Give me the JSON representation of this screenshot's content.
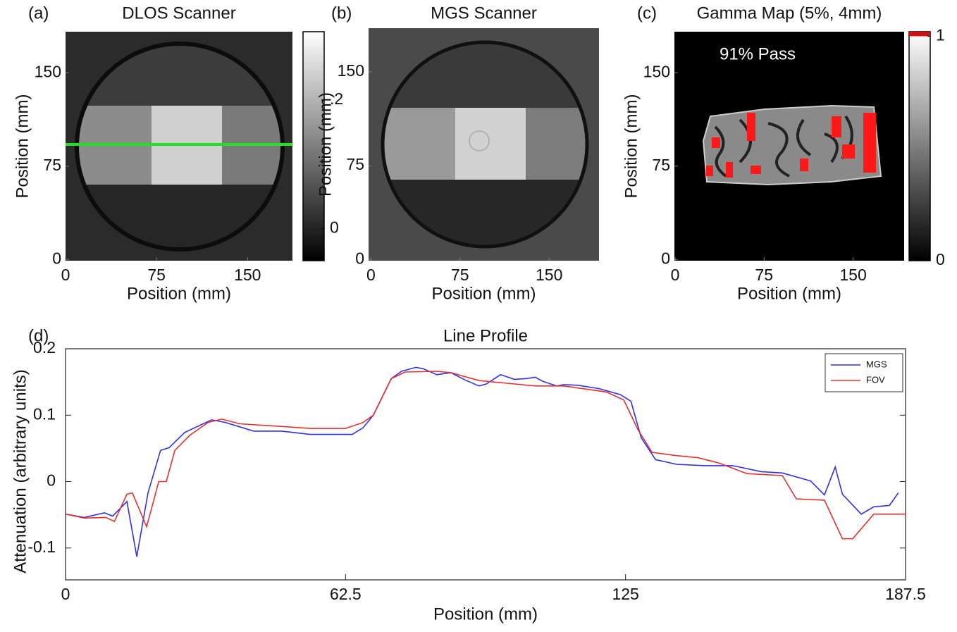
{
  "chart_data": [
    {
      "type": "image",
      "panel": "(a)",
      "title": "DLOS Scanner",
      "xlabel": "Position (mm)",
      "ylabel": "Position (mm)",
      "xlim": [
        0,
        187
      ],
      "ylim": [
        -1,
        183
      ],
      "xticks": [
        0,
        75,
        150
      ],
      "yticks": [
        0,
        75,
        150
      ],
      "colorbar": {
        "clim": [
          -0.05,
          0.306
        ],
        "ticks": [
          {
            "value": 0.2,
            "label": ".2"
          },
          0
        ]
      }
    },
    {
      "type": "image",
      "panel": "(b)",
      "title": "MGS Scanner",
      "xlabel": "Position (mm)",
      "ylabel": "Position (mm)",
      "xlim": [
        -2,
        192
      ],
      "ylim": [
        -1,
        185
      ],
      "xticks": [
        0,
        75,
        150
      ],
      "yticks": [
        0,
        75,
        150
      ]
    },
    {
      "type": "image",
      "panel": "(c)",
      "title": "Gamma Map (5%, 4mm)",
      "xlabel": "Position (mm)",
      "ylabel": "Position (mm)",
      "annotation": "91% Pass",
      "xlim": [
        -0.6,
        193
      ],
      "ylim": [
        -1,
        183
      ],
      "xticks": [
        0,
        75,
        150
      ],
      "yticks": [
        0,
        75,
        150
      ],
      "colorbar": {
        "clim": [
          0,
          1.02
        ],
        "ticks": [
          1,
          0
        ]
      }
    },
    {
      "type": "line",
      "panel": "(d)",
      "title": "Line Profile",
      "xlabel": "Position (mm)",
      "ylabel": "Attenuation (arbitrary units)",
      "xlim": [
        0,
        187.5
      ],
      "ylim": [
        -0.148,
        0.2
      ],
      "xticks": [
        0,
        62.5,
        125,
        187.5
      ],
      "yticks": [
        0.2,
        0.1,
        0,
        -0.1
      ],
      "legend": "upper right",
      "series": [
        {
          "name": "MGS",
          "color": "#2f2fe8",
          "x": [
            0,
            4.2,
            8.7,
            10.5,
            13.7,
            15.9,
            18.4,
            21.2,
            23.1,
            26.6,
            32.6,
            35.7,
            42.0,
            48.3,
            54.6,
            64.0,
            66.4,
            68.7,
            72.7,
            75.0,
            78.2,
            79.8,
            82.9,
            86.0,
            89.2,
            92.3,
            93.9,
            97.1,
            100.2,
            102.6,
            104.9,
            106.5,
            109.6,
            111.2,
            114.4,
            119.1,
            123.8,
            126.2,
            128.5,
            131.7,
            136.4,
            142.7,
            148.9,
            155.3,
            160.0,
            166.3,
            169.4,
            171.8,
            173.4,
            177.6,
            180.4,
            183.9,
            185.9
          ],
          "values": [
            -0.049,
            -0.054,
            -0.047,
            -0.052,
            -0.03,
            -0.113,
            -0.017,
            0.047,
            0.051,
            0.074,
            0.093,
            0.089,
            0.076,
            0.076,
            0.071,
            0.071,
            0.081,
            0.1,
            0.155,
            0.166,
            0.172,
            0.17,
            0.161,
            0.164,
            0.153,
            0.144,
            0.147,
            0.161,
            0.154,
            0.155,
            0.157,
            0.151,
            0.144,
            0.146,
            0.145,
            0.14,
            0.131,
            0.121,
            0.066,
            0.033,
            0.026,
            0.024,
            0.024,
            0.015,
            0.013,
            0.001,
            -0.02,
            0.022,
            -0.019,
            -0.049,
            -0.038,
            -0.036,
            -0.017
          ]
        },
        {
          "name": "FOV",
          "color": "#e82f2f",
          "x": [
            0,
            4.2,
            9.0,
            10.9,
            13.7,
            14.9,
            18.1,
            20.8,
            22.5,
            24.4,
            27.8,
            31.8,
            34.9,
            38.9,
            48.3,
            54.6,
            62.5,
            66.4,
            68.7,
            72.7,
            75.8,
            82.9,
            86.0,
            92.3,
            98.6,
            104.9,
            111.2,
            120.7,
            124.6,
            127.7,
            130.9,
            136.4,
            141.1,
            145.8,
            152.1,
            160.0,
            163.1,
            169.4,
            173.4,
            175.7,
            180.4,
            187.5
          ],
          "values": [
            -0.049,
            -0.055,
            -0.054,
            -0.06,
            -0.019,
            -0.017,
            -0.068,
            0,
            0,
            0.047,
            0.07,
            0.089,
            0.094,
            0.087,
            0.083,
            0.08,
            0.08,
            0.089,
            0.1,
            0.155,
            0.165,
            0.166,
            0.164,
            0.152,
            0.148,
            0.144,
            0.144,
            0.135,
            0.123,
            0.079,
            0.044,
            0.039,
            0.036,
            0.028,
            0.012,
            0.009,
            -0.026,
            -0.028,
            -0.086,
            -0.086,
            -0.049,
            -0.049
          ]
        }
      ]
    }
  ]
}
